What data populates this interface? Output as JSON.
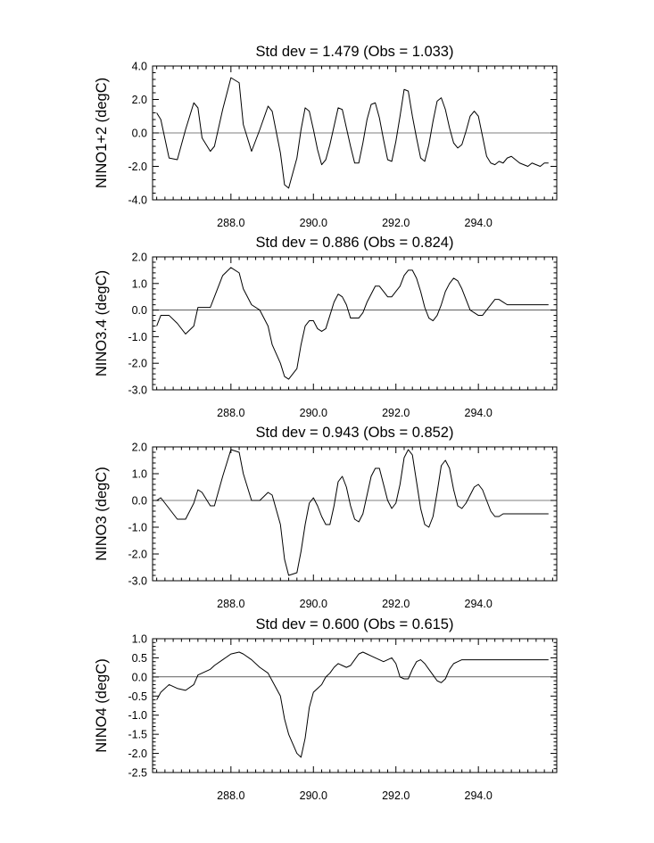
{
  "chart_data": [
    {
      "type": "line",
      "title": "Std dev = 1.479 (Obs = 1.033)",
      "ylabel": "NINO1+2 (degC)",
      "xlim": [
        286.1,
        295.9
      ],
      "ylim": [
        -4.0,
        4.0
      ],
      "yticks": [
        -4.0,
        -2.0,
        0.0,
        2.0,
        4.0
      ],
      "ytick_labels": [
        "-4.0",
        "-2.0",
        "0.0",
        "2.0",
        "4.0"
      ],
      "xticks": [
        288,
        290,
        292,
        294
      ],
      "xtick_labels": [
        "288.0",
        "290.0",
        "292.0",
        "294.0"
      ],
      "reference_line": 0,
      "x": [
        286.2,
        286.3,
        286.5,
        286.7,
        286.9,
        287.1,
        287.2,
        287.3,
        287.5,
        287.6,
        287.8,
        288.0,
        288.2,
        288.3,
        288.5,
        288.7,
        288.9,
        289.0,
        289.2,
        289.3,
        289.4,
        289.6,
        289.7,
        289.8,
        289.9,
        290.0,
        290.1,
        290.2,
        290.3,
        290.4,
        290.5,
        290.6,
        290.7,
        290.8,
        290.9,
        291.0,
        291.1,
        291.2,
        291.3,
        291.4,
        291.5,
        291.6,
        291.7,
        291.8,
        291.9,
        292.0,
        292.1,
        292.2,
        292.3,
        292.4,
        292.5,
        292.6,
        292.7,
        292.8,
        292.9,
        293.0,
        293.1,
        293.2,
        293.3,
        293.4,
        293.5,
        293.6,
        293.7,
        293.8,
        293.9,
        294.0,
        294.1,
        294.2,
        294.3,
        294.4,
        294.5,
        294.6,
        294.7,
        294.8,
        294.9,
        295.0,
        295.1,
        295.2,
        295.3,
        295.4,
        295.5,
        295.6,
        295.7
      ],
      "series": [
        {
          "values": [
            1.2,
            0.8,
            -1.5,
            -1.6,
            0.2,
            1.8,
            1.5,
            -0.3,
            -1.1,
            -0.8,
            1.4,
            3.3,
            3.0,
            0.5,
            -1.1,
            0.2,
            1.6,
            1.3,
            -1.2,
            -3.1,
            -3.3,
            -1.5,
            0.2,
            1.5,
            1.3,
            0.2,
            -1.0,
            -1.9,
            -1.6,
            -0.7,
            0.4,
            1.5,
            1.4,
            0.3,
            -0.8,
            -1.8,
            -1.8,
            -0.6,
            0.8,
            1.7,
            1.8,
            0.9,
            -0.4,
            -1.6,
            -1.7,
            -0.5,
            1.0,
            2.6,
            2.5,
            1.0,
            -0.3,
            -1.5,
            -1.7,
            -0.7,
            0.7,
            1.9,
            2.1,
            1.4,
            0.3,
            -0.6,
            -0.9,
            -0.7,
            0.1,
            1.0,
            1.3,
            1.0,
            -0.2,
            -1.4,
            -1.8,
            -1.9,
            -1.7,
            -1.8,
            -1.5,
            -1.4,
            -1.6,
            -1.8,
            -1.9,
            -2.0,
            -1.8,
            -1.9,
            -2.0,
            -1.8,
            -1.8
          ]
        }
      ]
    },
    {
      "type": "line",
      "title": "Std dev = 0.886 (Obs = 0.824)",
      "ylabel": "NINO3.4 (degC)",
      "xlim": [
        286.1,
        295.9
      ],
      "ylim": [
        -3.0,
        2.0
      ],
      "yticks": [
        -3.0,
        -2.0,
        -1.0,
        0.0,
        1.0,
        2.0
      ],
      "ytick_labels": [
        "-3.0",
        "-2.0",
        "-1.0",
        "0.0",
        "1.0",
        "2.0"
      ],
      "xticks": [
        288,
        290,
        292,
        294
      ],
      "xtick_labels": [
        "288.0",
        "290.0",
        "292.0",
        "294.0"
      ],
      "reference_line": 0,
      "x": [
        286.2,
        286.3,
        286.5,
        286.7,
        286.9,
        287.1,
        287.2,
        287.3,
        287.5,
        287.6,
        287.8,
        288.0,
        288.2,
        288.3,
        288.5,
        288.7,
        288.9,
        289.0,
        289.2,
        289.3,
        289.4,
        289.6,
        289.7,
        289.8,
        289.9,
        290.0,
        290.1,
        290.2,
        290.3,
        290.4,
        290.5,
        290.6,
        290.7,
        290.8,
        290.9,
        291.0,
        291.1,
        291.2,
        291.3,
        291.4,
        291.5,
        291.6,
        291.7,
        291.8,
        291.9,
        292.0,
        292.1,
        292.2,
        292.3,
        292.4,
        292.5,
        292.6,
        292.7,
        292.8,
        292.9,
        293.0,
        293.1,
        293.2,
        293.3,
        293.4,
        293.5,
        293.6,
        293.7,
        293.8,
        293.9,
        294.0,
        294.1,
        294.2,
        294.3,
        294.4,
        294.5,
        294.6,
        294.7,
        294.8,
        294.9,
        295.0,
        295.1,
        295.2,
        295.3,
        295.4,
        295.5,
        295.6,
        295.7
      ],
      "series": [
        {
          "values": [
            -0.6,
            -0.2,
            -0.2,
            -0.5,
            -0.9,
            -0.6,
            0.1,
            0.1,
            0.1,
            0.5,
            1.3,
            1.6,
            1.4,
            0.8,
            0.2,
            0.0,
            -0.6,
            -1.3,
            -2.0,
            -2.5,
            -2.6,
            -2.2,
            -1.3,
            -0.6,
            -0.4,
            -0.4,
            -0.7,
            -0.8,
            -0.7,
            -0.2,
            0.3,
            0.6,
            0.5,
            0.2,
            -0.3,
            -0.3,
            -0.3,
            -0.1,
            0.3,
            0.6,
            0.9,
            0.9,
            0.7,
            0.5,
            0.5,
            0.7,
            0.9,
            1.3,
            1.5,
            1.5,
            1.2,
            0.7,
            0.1,
            -0.3,
            -0.4,
            -0.2,
            0.2,
            0.7,
            1.0,
            1.2,
            1.1,
            0.8,
            0.4,
            0.0,
            -0.1,
            -0.2,
            -0.2,
            0.0,
            0.2,
            0.4,
            0.4,
            0.3,
            0.2,
            0.2,
            0.2,
            0.2,
            0.2,
            0.2,
            0.2,
            0.2,
            0.2,
            0.2,
            0.2
          ]
        }
      ]
    },
    {
      "type": "line",
      "title": "Std dev = 0.943 (Obs = 0.852)",
      "ylabel": "NINO3 (degC)",
      "xlim": [
        286.1,
        295.9
      ],
      "ylim": [
        -3.0,
        2.0
      ],
      "yticks": [
        -3.0,
        -2.0,
        -1.0,
        0.0,
        1.0,
        2.0
      ],
      "ytick_labels": [
        "-3.0",
        "-2.0",
        "-1.0",
        "0.0",
        "1.0",
        "2.0"
      ],
      "xticks": [
        288,
        290,
        292,
        294
      ],
      "xtick_labels": [
        "288.0",
        "290.0",
        "292.0",
        "294.0"
      ],
      "reference_line": 0,
      "x": [
        286.2,
        286.3,
        286.5,
        286.7,
        286.9,
        287.1,
        287.2,
        287.3,
        287.5,
        287.6,
        287.8,
        288.0,
        288.2,
        288.3,
        288.5,
        288.7,
        288.9,
        289.0,
        289.2,
        289.3,
        289.4,
        289.6,
        289.7,
        289.8,
        289.9,
        290.0,
        290.1,
        290.2,
        290.3,
        290.4,
        290.5,
        290.6,
        290.7,
        290.8,
        290.9,
        291.0,
        291.1,
        291.2,
        291.3,
        291.4,
        291.5,
        291.6,
        291.7,
        291.8,
        291.9,
        292.0,
        292.1,
        292.2,
        292.3,
        292.4,
        292.5,
        292.6,
        292.7,
        292.8,
        292.9,
        293.0,
        293.1,
        293.2,
        293.3,
        293.4,
        293.5,
        293.6,
        293.7,
        293.8,
        293.9,
        294.0,
        294.1,
        294.2,
        294.3,
        294.4,
        294.5,
        294.6,
        294.7,
        294.8,
        294.9,
        295.0,
        295.1,
        295.2,
        295.3,
        295.4,
        295.5,
        295.6,
        295.7
      ],
      "series": [
        {
          "values": [
            0.0,
            0.1,
            -0.3,
            -0.7,
            -0.7,
            -0.1,
            0.4,
            0.3,
            -0.2,
            -0.2,
            0.9,
            1.9,
            1.8,
            1.0,
            0.0,
            0.0,
            0.3,
            0.2,
            -0.9,
            -2.2,
            -2.8,
            -2.7,
            -1.9,
            -0.9,
            -0.1,
            0.1,
            -0.2,
            -0.6,
            -0.9,
            -0.9,
            -0.2,
            0.7,
            0.9,
            0.5,
            -0.2,
            -0.7,
            -0.8,
            -0.5,
            0.2,
            0.9,
            1.2,
            1.2,
            0.6,
            0.0,
            -0.3,
            -0.1,
            0.6,
            1.6,
            1.9,
            1.7,
            0.7,
            -0.3,
            -0.9,
            -1.0,
            -0.6,
            0.3,
            1.3,
            1.5,
            1.2,
            0.4,
            -0.2,
            -0.3,
            -0.1,
            0.2,
            0.5,
            0.6,
            0.4,
            0.0,
            -0.4,
            -0.6,
            -0.6,
            -0.5,
            -0.5,
            -0.5,
            -0.5,
            -0.5,
            -0.5,
            -0.5,
            -0.5,
            -0.5,
            -0.5,
            -0.5,
            -0.5
          ]
        }
      ]
    },
    {
      "type": "line",
      "title": "Std dev = 0.600 (Obs = 0.615)",
      "ylabel": "NINO4 (degC)",
      "xlim": [
        286.1,
        295.9
      ],
      "ylim": [
        -2.5,
        1.0
      ],
      "yticks": [
        -2.5,
        -2.0,
        -1.5,
        -1.0,
        -0.5,
        0.0,
        0.5,
        1.0
      ],
      "ytick_labels": [
        "-2.5",
        "-2.0",
        "-1.5",
        "-1.0",
        "-0.5",
        "0.0",
        "0.5",
        "1.0"
      ],
      "xticks": [
        288,
        290,
        292,
        294
      ],
      "xtick_labels": [
        "288.0",
        "290.0",
        "292.0",
        "294.0"
      ],
      "reference_line": 0,
      "x": [
        286.2,
        286.3,
        286.5,
        286.7,
        286.9,
        287.1,
        287.2,
        287.3,
        287.5,
        287.6,
        287.8,
        288.0,
        288.2,
        288.3,
        288.5,
        288.7,
        288.9,
        289.0,
        289.2,
        289.3,
        289.4,
        289.6,
        289.7,
        289.8,
        289.9,
        290.0,
        290.1,
        290.2,
        290.3,
        290.4,
        290.5,
        290.6,
        290.7,
        290.8,
        290.9,
        291.0,
        291.1,
        291.2,
        291.3,
        291.4,
        291.5,
        291.6,
        291.7,
        291.8,
        291.9,
        292.0,
        292.1,
        292.2,
        292.3,
        292.4,
        292.5,
        292.6,
        292.7,
        292.8,
        292.9,
        293.0,
        293.1,
        293.2,
        293.3,
        293.4,
        293.5,
        293.6,
        293.7,
        293.8,
        293.9,
        294.0,
        294.1,
        294.2,
        294.3,
        294.4,
        294.5,
        294.6,
        294.7,
        294.8,
        294.9,
        295.0,
        295.1,
        295.2,
        295.3,
        295.4,
        295.5,
        295.6,
        295.7
      ],
      "series": [
        {
          "values": [
            -0.6,
            -0.4,
            -0.2,
            -0.3,
            -0.35,
            -0.2,
            0.05,
            0.1,
            0.2,
            0.3,
            0.45,
            0.6,
            0.65,
            0.6,
            0.45,
            0.25,
            0.1,
            -0.1,
            -0.5,
            -1.1,
            -1.5,
            -2.0,
            -2.1,
            -1.6,
            -0.8,
            -0.4,
            -0.3,
            -0.2,
            0.0,
            0.1,
            0.25,
            0.35,
            0.3,
            0.25,
            0.3,
            0.45,
            0.6,
            0.65,
            0.6,
            0.55,
            0.5,
            0.45,
            0.4,
            0.45,
            0.5,
            0.35,
            0.0,
            -0.05,
            -0.05,
            0.2,
            0.4,
            0.45,
            0.35,
            0.2,
            0.05,
            -0.1,
            -0.15,
            -0.05,
            0.2,
            0.35,
            0.4,
            0.45,
            0.45,
            0.45,
            0.45,
            0.45,
            0.45,
            0.45,
            0.45,
            0.45,
            0.45,
            0.45,
            0.45,
            0.45,
            0.45,
            0.45,
            0.45,
            0.45,
            0.45,
            0.45,
            0.45,
            0.45,
            0.45
          ]
        }
      ]
    }
  ]
}
